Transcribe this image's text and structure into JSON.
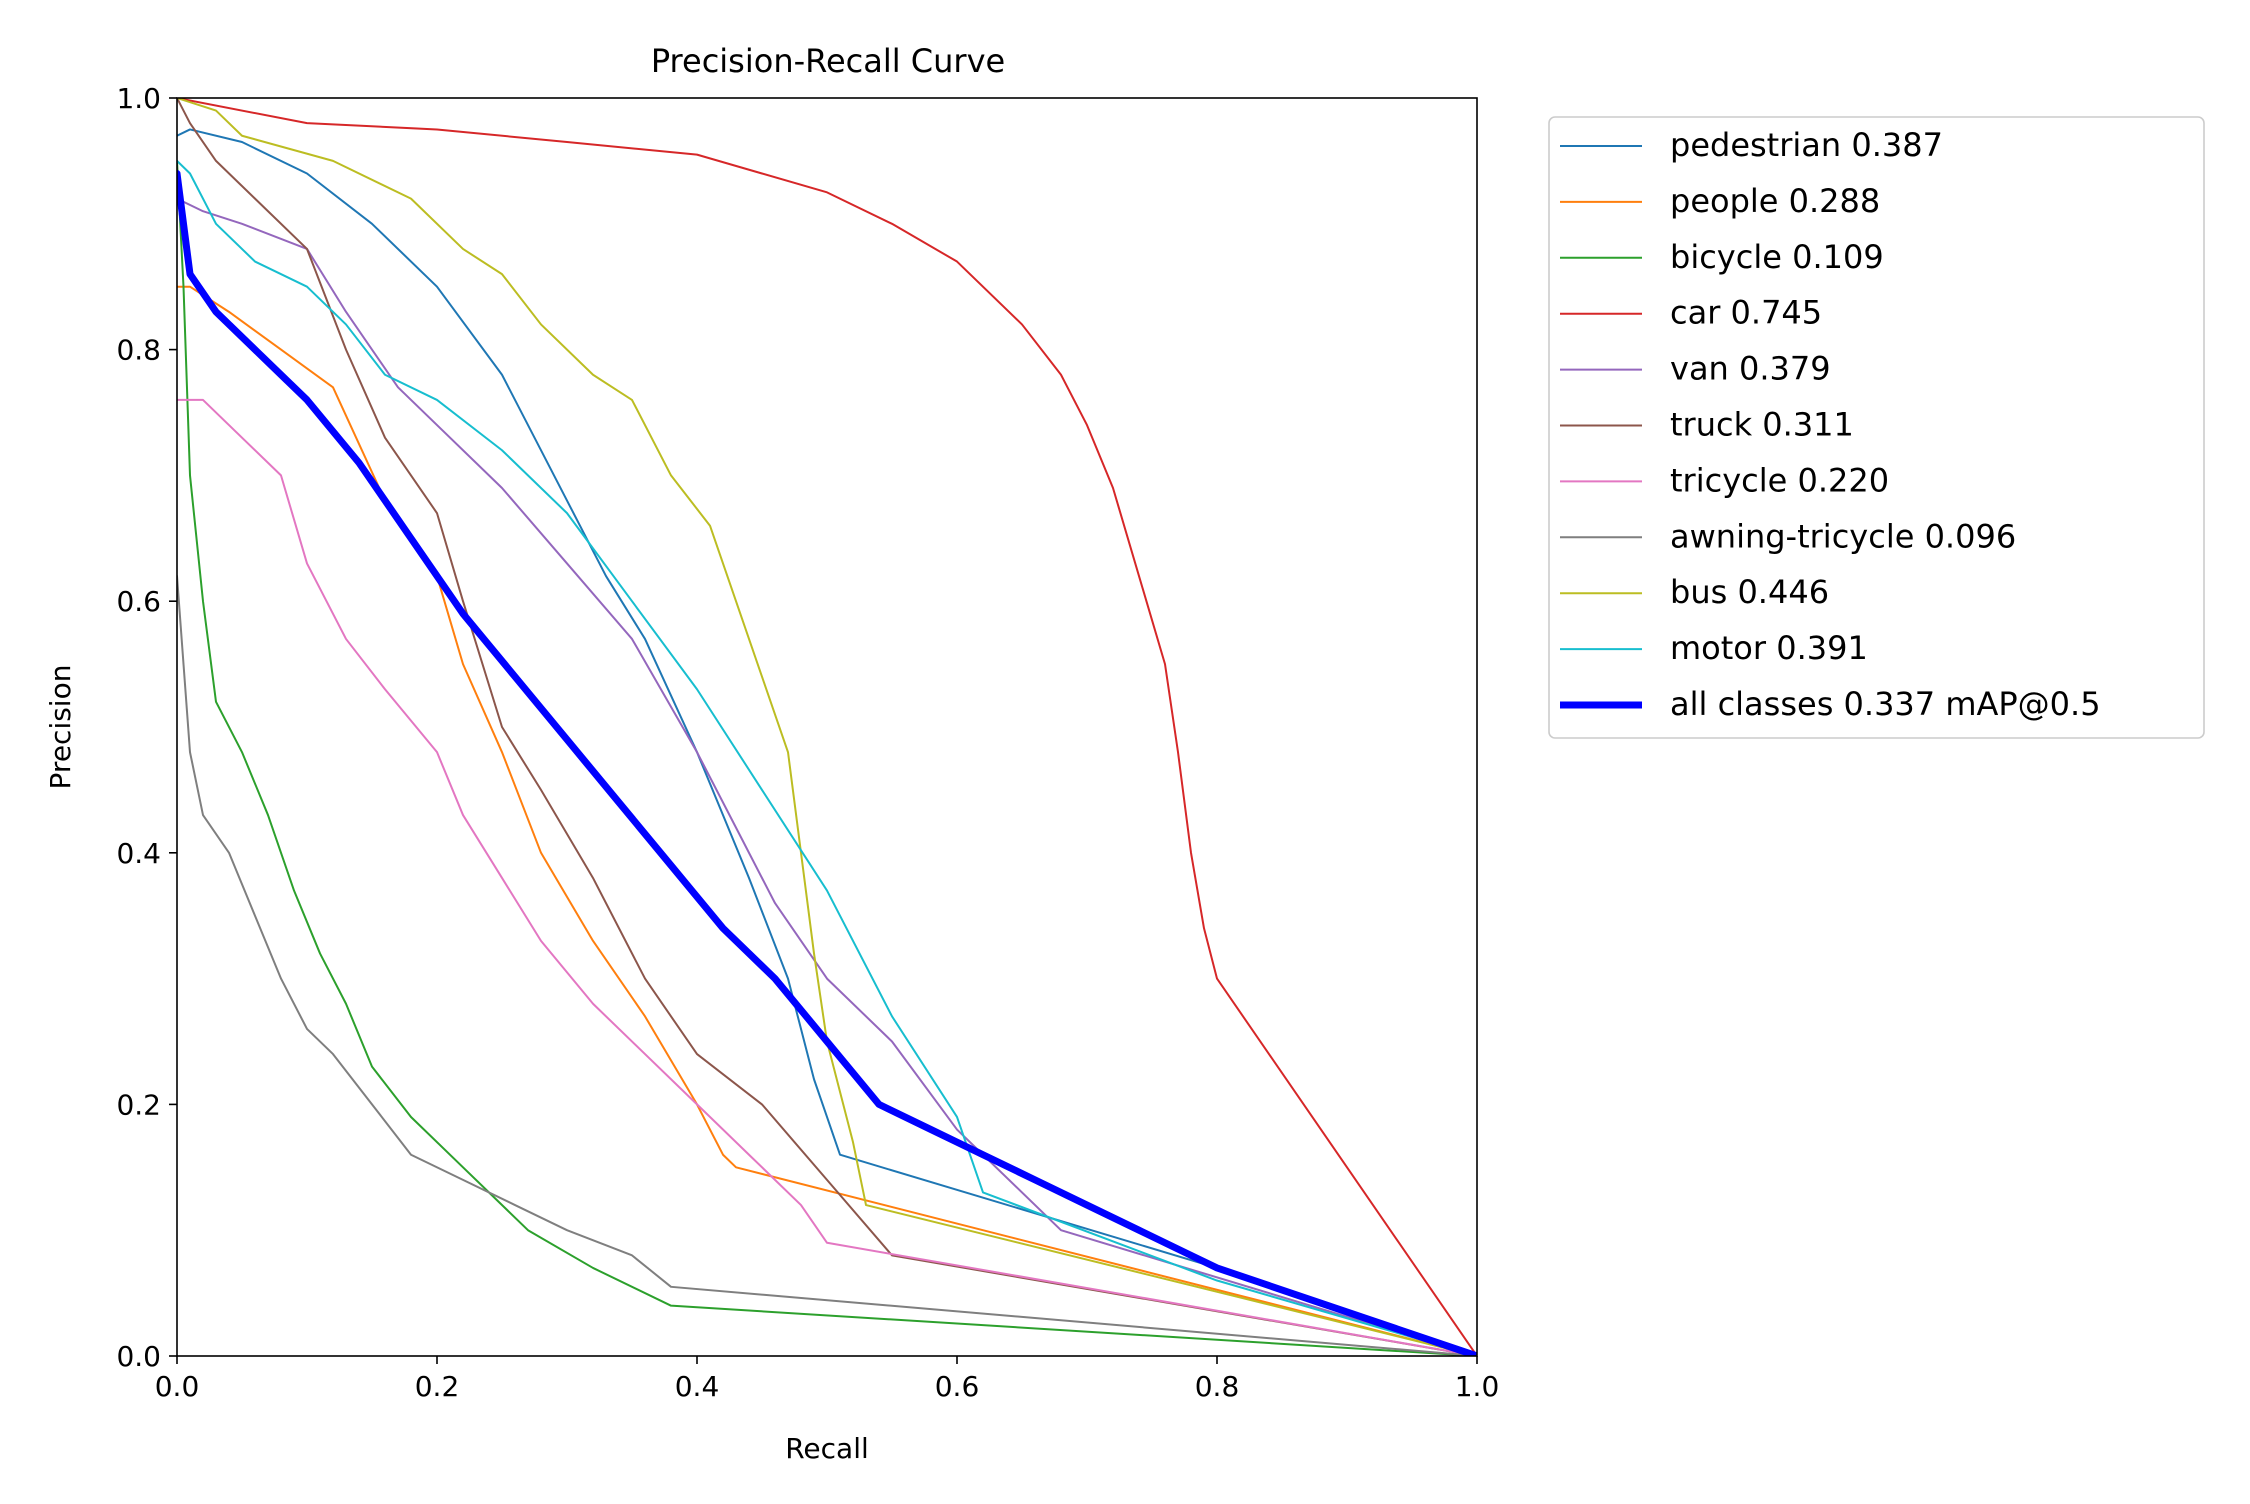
{
  "chart_data": {
    "type": "line",
    "title": "Precision-Recall Curve",
    "xlabel": "Recall",
    "ylabel": "Precision",
    "xlim": [
      0,
      1
    ],
    "ylim": [
      0,
      1
    ],
    "xticks": [
      "0.0",
      "0.2",
      "0.4",
      "0.6",
      "0.8",
      "1.0"
    ],
    "yticks": [
      "0.0",
      "0.2",
      "0.4",
      "0.6",
      "0.8",
      "1.0"
    ],
    "legend_position": "outside-right-top",
    "series": [
      {
        "name": "pedestrian",
        "label": "pedestrian 0.387",
        "color": "#1f77b4",
        "emphasis": false,
        "x": [
          0,
          0.01,
          0.05,
          0.1,
          0.15,
          0.2,
          0.25,
          0.3,
          0.33,
          0.36,
          0.4,
          0.44,
          0.47,
          0.49,
          0.5,
          0.51,
          0.8,
          1.0
        ],
        "y": [
          0.97,
          0.975,
          0.965,
          0.94,
          0.9,
          0.85,
          0.78,
          0.68,
          0.62,
          0.57,
          0.48,
          0.38,
          0.3,
          0.22,
          0.19,
          0.16,
          0.07,
          0
        ]
      },
      {
        "name": "people",
        "label": "people 0.288",
        "color": "#ff7f0e",
        "emphasis": false,
        "x": [
          0,
          0.01,
          0.04,
          0.08,
          0.12,
          0.16,
          0.2,
          0.22,
          0.25,
          0.28,
          0.32,
          0.36,
          0.4,
          0.42,
          0.43,
          1.0
        ],
        "y": [
          0.85,
          0.85,
          0.83,
          0.8,
          0.77,
          0.68,
          0.62,
          0.55,
          0.48,
          0.4,
          0.33,
          0.27,
          0.2,
          0.16,
          0.15,
          0
        ]
      },
      {
        "name": "bicycle",
        "label": "bicycle 0.109",
        "color": "#2ca02c",
        "emphasis": false,
        "x": [
          0,
          0.005,
          0.01,
          0.02,
          0.03,
          0.05,
          0.07,
          0.09,
          0.11,
          0.13,
          0.15,
          0.18,
          0.22,
          0.27,
          0.32,
          0.38,
          1.0
        ],
        "y": [
          0.95,
          0.85,
          0.7,
          0.6,
          0.52,
          0.48,
          0.43,
          0.37,
          0.32,
          0.28,
          0.23,
          0.19,
          0.15,
          0.1,
          0.07,
          0.04,
          0
        ]
      },
      {
        "name": "car",
        "label": "car 0.745",
        "color": "#d62728",
        "emphasis": false,
        "x": [
          0,
          0.1,
          0.2,
          0.3,
          0.4,
          0.45,
          0.5,
          0.55,
          0.6,
          0.65,
          0.68,
          0.7,
          0.72,
          0.74,
          0.76,
          0.77,
          0.78,
          0.79,
          0.8,
          1.0
        ],
        "y": [
          1.0,
          0.98,
          0.975,
          0.965,
          0.955,
          0.94,
          0.925,
          0.9,
          0.87,
          0.82,
          0.78,
          0.74,
          0.69,
          0.62,
          0.55,
          0.48,
          0.4,
          0.34,
          0.3,
          0
        ]
      },
      {
        "name": "van",
        "label": "van 0.379",
        "color": "#9467bd",
        "emphasis": false,
        "x": [
          0,
          0.02,
          0.05,
          0.1,
          0.13,
          0.17,
          0.2,
          0.25,
          0.3,
          0.35,
          0.4,
          0.43,
          0.46,
          0.5,
          0.55,
          0.6,
          0.68,
          1.0
        ],
        "y": [
          0.92,
          0.91,
          0.9,
          0.88,
          0.83,
          0.77,
          0.74,
          0.69,
          0.63,
          0.57,
          0.48,
          0.42,
          0.36,
          0.3,
          0.25,
          0.18,
          0.1,
          0
        ]
      },
      {
        "name": "truck",
        "label": "truck 0.311",
        "color": "#8c564b",
        "emphasis": false,
        "x": [
          0,
          0.01,
          0.03,
          0.06,
          0.1,
          0.13,
          0.16,
          0.2,
          0.22,
          0.25,
          0.28,
          0.32,
          0.36,
          0.4,
          0.45,
          0.5,
          0.55,
          1.0
        ],
        "y": [
          1.0,
          0.98,
          0.95,
          0.92,
          0.88,
          0.8,
          0.73,
          0.67,
          0.6,
          0.5,
          0.45,
          0.38,
          0.3,
          0.24,
          0.2,
          0.14,
          0.08,
          0
        ]
      },
      {
        "name": "tricycle",
        "label": "tricycle 0.220",
        "color": "#e377c2",
        "emphasis": false,
        "x": [
          0,
          0.02,
          0.05,
          0.08,
          0.1,
          0.13,
          0.16,
          0.2,
          0.22,
          0.25,
          0.28,
          0.32,
          0.36,
          0.4,
          0.44,
          0.48,
          0.5,
          1.0
        ],
        "y": [
          0.76,
          0.76,
          0.73,
          0.7,
          0.63,
          0.57,
          0.53,
          0.48,
          0.43,
          0.38,
          0.33,
          0.28,
          0.24,
          0.2,
          0.16,
          0.12,
          0.09,
          0
        ]
      },
      {
        "name": "awning-tricycle",
        "label": "awning-tricycle 0.096",
        "color": "#7f7f7f",
        "emphasis": false,
        "x": [
          0,
          0.005,
          0.01,
          0.02,
          0.04,
          0.06,
          0.08,
          0.1,
          0.12,
          0.15,
          0.18,
          0.22,
          0.26,
          0.3,
          0.35,
          0.38,
          1.0
        ],
        "y": [
          0.62,
          0.55,
          0.48,
          0.43,
          0.4,
          0.35,
          0.3,
          0.26,
          0.24,
          0.2,
          0.16,
          0.14,
          0.12,
          0.1,
          0.08,
          0.055,
          0
        ]
      },
      {
        "name": "bus",
        "label": "bus 0.446",
        "color": "#bcbd22",
        "emphasis": false,
        "x": [
          0,
          0.03,
          0.05,
          0.12,
          0.18,
          0.22,
          0.25,
          0.28,
          0.32,
          0.35,
          0.38,
          0.41,
          0.43,
          0.45,
          0.47,
          0.48,
          0.49,
          0.5,
          0.52,
          0.53,
          1.0
        ],
        "y": [
          1.0,
          0.99,
          0.97,
          0.95,
          0.92,
          0.88,
          0.86,
          0.82,
          0.78,
          0.76,
          0.7,
          0.66,
          0.6,
          0.54,
          0.48,
          0.4,
          0.32,
          0.25,
          0.17,
          0.12,
          0
        ]
      },
      {
        "name": "motor",
        "label": "motor 0.391",
        "color": "#17becf",
        "emphasis": false,
        "x": [
          0,
          0.01,
          0.03,
          0.06,
          0.1,
          0.13,
          0.16,
          0.2,
          0.25,
          0.3,
          0.35,
          0.4,
          0.45,
          0.5,
          0.55,
          0.6,
          0.62,
          0.8,
          1.0
        ],
        "y": [
          0.95,
          0.94,
          0.9,
          0.87,
          0.85,
          0.82,
          0.78,
          0.76,
          0.72,
          0.67,
          0.6,
          0.53,
          0.45,
          0.37,
          0.27,
          0.19,
          0.13,
          0.06,
          0
        ]
      },
      {
        "name": "all classes",
        "label": "all classes 0.337 mAP@0.5",
        "color": "#0000ff",
        "emphasis": true,
        "x": [
          0,
          0.005,
          0.01,
          0.03,
          0.06,
          0.1,
          0.14,
          0.18,
          0.22,
          0.26,
          0.3,
          0.34,
          0.38,
          0.42,
          0.46,
          0.5,
          0.54,
          0.58,
          0.62,
          0.66,
          0.7,
          0.74,
          0.78,
          0.8,
          1.0
        ],
        "y": [
          0.94,
          0.9,
          0.86,
          0.83,
          0.8,
          0.76,
          0.71,
          0.65,
          0.59,
          0.54,
          0.49,
          0.44,
          0.39,
          0.34,
          0.3,
          0.25,
          0.2,
          0.18,
          0.16,
          0.14,
          0.12,
          0.1,
          0.08,
          0.07,
          0
        ]
      }
    ]
  }
}
